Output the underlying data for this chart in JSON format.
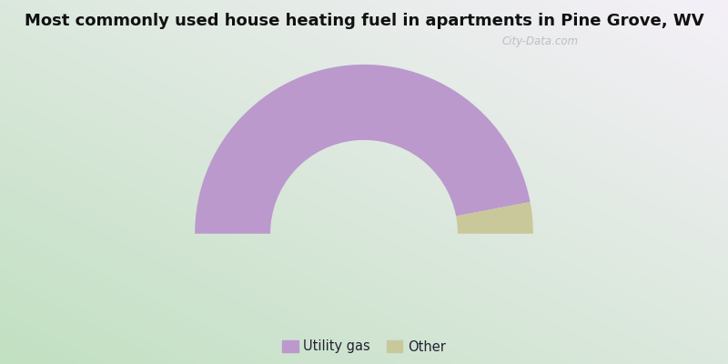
{
  "title": "Most commonly used house heating fuel in apartments in Pine Grove, WV",
  "slices": [
    {
      "label": "Utility gas",
      "value": 94.0,
      "color": "#bb99cc"
    },
    {
      "label": "Other",
      "value": 6.0,
      "color": "#c8c89a"
    }
  ],
  "bg_cyan": "#00e8e8",
  "bg_green": "#c2e0c2",
  "bg_white": "#f8f8ff",
  "title_fontsize": 13,
  "legend_fontsize": 10.5,
  "watermark": "City-Data.com"
}
